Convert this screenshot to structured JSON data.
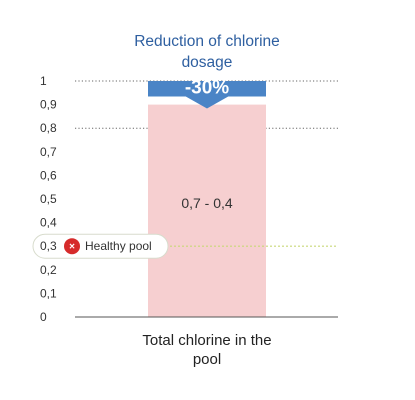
{
  "chart_data": {
    "type": "bar",
    "title_lines": [
      "Reduction of chlorine",
      "dosage"
    ],
    "y_ticks": [
      "0",
      "0,1",
      "0,2",
      "0,3",
      "0,4",
      "0,5",
      "0,6",
      "0,7",
      "0,8",
      "0,9",
      "1"
    ],
    "ylim": [
      0,
      1
    ],
    "categories_lines": [
      "Total chlorine in the",
      "pool"
    ],
    "range_bar": {
      "low": 0,
      "high": 0.9,
      "label": "0,7 - 0,4"
    },
    "reduction_badge": {
      "label": "-30%",
      "value": 1
    },
    "healthy_pool_line": {
      "value": 0.3,
      "label": "Healthy pool",
      "value_label": "0,3"
    },
    "dotted_gridlines": [
      1,
      0.8
    ],
    "colors": {
      "bar": "#f6cfd0",
      "badge": "#4a84c6",
      "title": "#2e5fa0",
      "text": "#333333",
      "axis": "#555555",
      "healthy_line": "#c8d878",
      "icon": "#d62b2b"
    }
  }
}
